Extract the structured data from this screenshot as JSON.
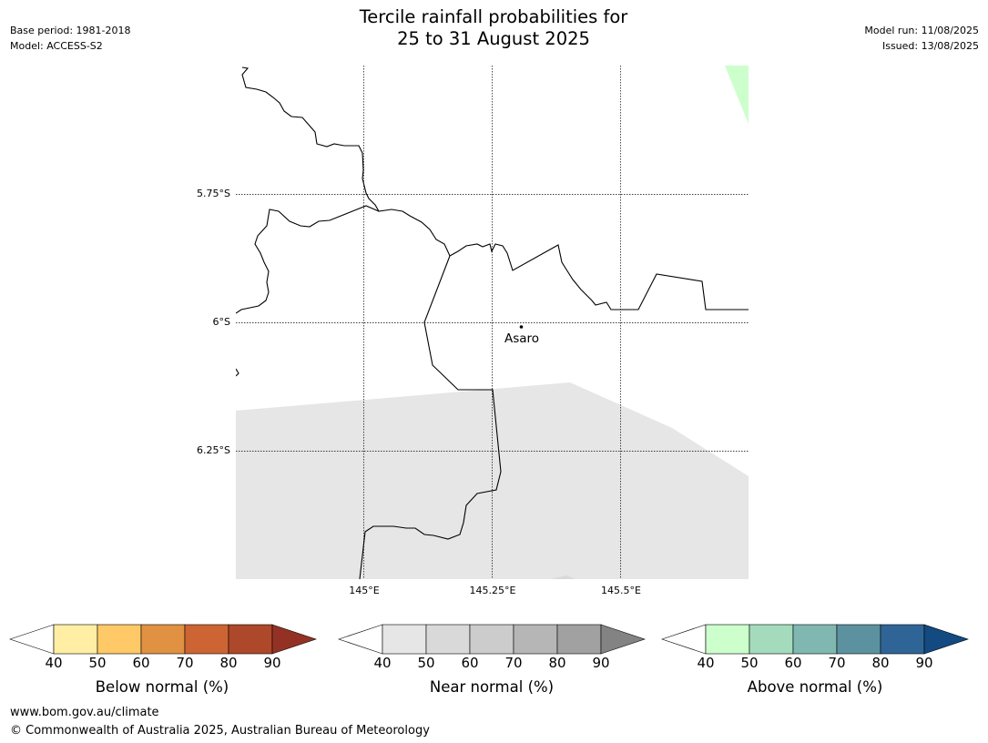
{
  "header": {
    "title_line1": "Tercile rainfall probabilities for",
    "title_line2": "25 to 31 August 2025",
    "base_period": "Base period: 1981-2018",
    "model": "Model: ACCESS-S2",
    "model_run": "Model run: 11/08/2025",
    "issued": "Issued: 13/08/2025"
  },
  "map": {
    "lat_labels": [
      "5.75°S",
      "6°S",
      "6.25°S"
    ],
    "lon_labels": [
      "145°E",
      "145.25°E",
      "145.5°E"
    ],
    "place": {
      "name": "Asaro",
      "lon": 145.29,
      "lat": -6.01
    },
    "extent": {
      "lon_min": 144.75,
      "lon_max": 145.75,
      "lat_min": -6.5,
      "lat_max": -5.5
    },
    "regions": [
      {
        "category": "near normal",
        "range": "40-50%",
        "color": "#e6e6e6"
      },
      {
        "category": "above normal",
        "range": "40-50%",
        "color": "#ccffcc"
      }
    ]
  },
  "legends": [
    {
      "label": "Below normal (%)",
      "ticks": [
        "40",
        "50",
        "60",
        "70",
        "80",
        "90"
      ],
      "colors": [
        "#ffffff",
        "#ffeea4",
        "#fec966",
        "#e09142",
        "#cc6533",
        "#ae482a",
        "#933224"
      ]
    },
    {
      "label": "Near normal (%)",
      "ticks": [
        "40",
        "50",
        "60",
        "70",
        "80",
        "90"
      ],
      "colors": [
        "#ffffff",
        "#e6e6e6",
        "#d9d9d9",
        "#cccccc",
        "#b6b6b6",
        "#a1a1a1",
        "#838383"
      ]
    },
    {
      "label": "Above normal (%)",
      "ticks": [
        "40",
        "50",
        "60",
        "70",
        "80",
        "90"
      ],
      "colors": [
        "#ffffff",
        "#ccffcc",
        "#a4dbbc",
        "#80b8b1",
        "#5c92a0",
        "#2f6596",
        "#124a81"
      ]
    }
  ],
  "footer": {
    "url": "www.bom.gov.au/climate",
    "copyright": "© Commonwealth of Australia 2025, Australian Bureau of Meteorology"
  }
}
